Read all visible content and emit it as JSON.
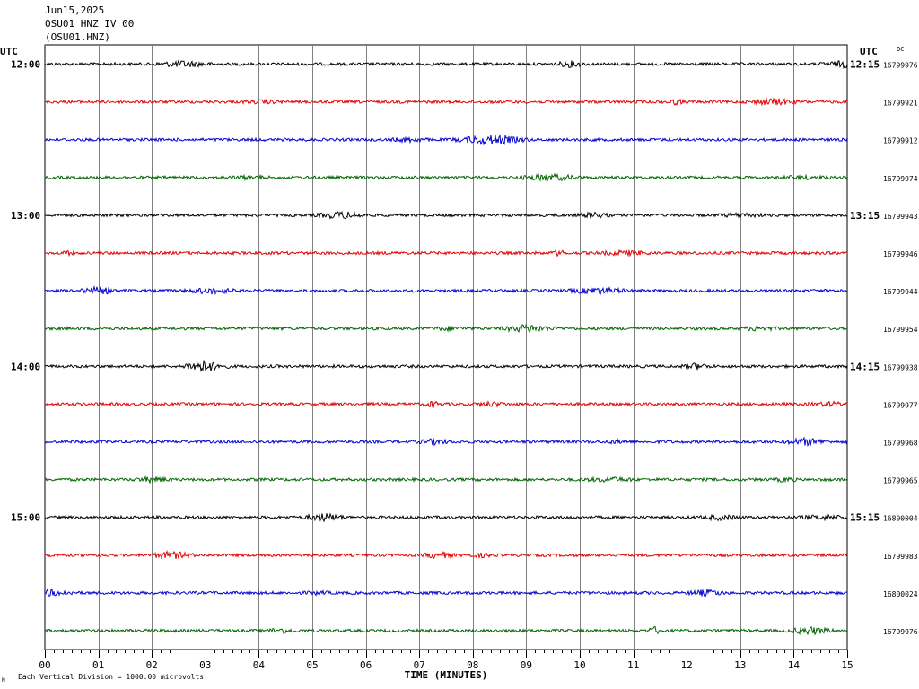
{
  "header": {
    "date": "Jun15,2025",
    "station": "OSU01 HNZ IV 00",
    "channel_code": "(OSU01.HNZ)"
  },
  "left_axis": {
    "label": "UTC"
  },
  "right_axis": {
    "label": "UTC",
    "dc_label": "DC"
  },
  "footer": {
    "note": "Each Vertical Division = 1000.00 microvolts",
    "corner_mark": "M"
  },
  "chart_data": {
    "type": "line",
    "title": "Jun15,2025  OSU01 HNZ IV 00  (OSU01.HNZ)",
    "xlabel": "TIME (MINUTES)",
    "ylabel": "",
    "xlim": [
      0,
      15
    ],
    "x_ticks": [
      "00",
      "01",
      "02",
      "03",
      "04",
      "05",
      "06",
      "07",
      "08",
      "09",
      "10",
      "11",
      "12",
      "13",
      "14",
      "15"
    ],
    "grid": true,
    "trace_colors": [
      "#000000",
      "#e00000",
      "#0000d0",
      "#006400"
    ],
    "left_time_labels": [
      {
        "trace_index": 0,
        "text": "12:00"
      },
      {
        "trace_index": 4,
        "text": "13:00"
      },
      {
        "trace_index": 8,
        "text": "14:00"
      },
      {
        "trace_index": 12,
        "text": "15:00"
      }
    ],
    "right_time_labels": [
      {
        "trace_index": 0,
        "text": "12:15"
      },
      {
        "trace_index": 4,
        "text": "13:15"
      },
      {
        "trace_index": 8,
        "text": "14:15"
      },
      {
        "trace_index": 12,
        "text": "15:15"
      }
    ],
    "dc_values": [
      "16799976",
      "16799921",
      "16799912",
      "16799974",
      "16799943",
      "16799946",
      "16799944",
      "16799954",
      "16799938",
      "16799977",
      "16799968",
      "16799965",
      "16800004",
      "16799983",
      "16800024",
      "16799976"
    ]
  }
}
